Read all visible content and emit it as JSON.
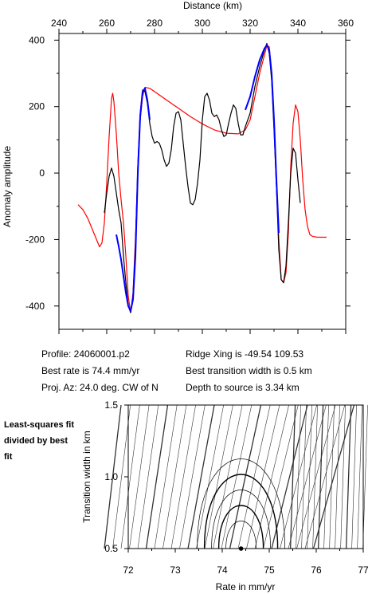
{
  "chart_data": [
    {
      "type": "line",
      "xlabel": "Distance (km)",
      "ylabel": "Anomaly amplitude",
      "xlim": [
        240,
        360
      ],
      "ylim": [
        -470,
        420
      ],
      "x_ticks": [
        240,
        260,
        280,
        300,
        320,
        340,
        360
      ],
      "y_ticks": [
        400,
        200,
        0,
        -200,
        -400
      ],
      "grid": false,
      "series": [
        {
          "color": "#ff0000",
          "points": [
            [
              248,
              -95
            ],
            [
              250,
              -110
            ],
            [
              252,
              -135
            ],
            [
              254,
              -170
            ],
            [
              256,
              -205
            ],
            [
              257,
              -222
            ],
            [
              258,
              -210
            ],
            [
              259,
              -150
            ],
            [
              260,
              -30
            ],
            [
              261,
              110
            ],
            [
              262,
              225
            ],
            [
              262.5,
              240
            ],
            [
              263,
              215
            ],
            [
              264,
              120
            ],
            [
              265,
              0
            ],
            [
              266,
              -80
            ],
            [
              267,
              -150
            ],
            [
              268,
              -250
            ],
            [
              269,
              -370
            ],
            [
              270,
              -420
            ],
            [
              271,
              -360
            ],
            [
              272,
              -200
            ],
            [
              273,
              0
            ],
            [
              274,
              160
            ],
            [
              275,
              230
            ],
            [
              276,
              258
            ],
            [
              278,
              255
            ],
            [
              280,
              245
            ],
            [
              285,
              220
            ],
            [
              290,
              195
            ],
            [
              295,
              170
            ],
            [
              300,
              148
            ],
            [
              305,
              130
            ],
            [
              310,
              120
            ],
            [
              315,
              118
            ],
            [
              318,
              130
            ],
            [
              320,
              160
            ],
            [
              322,
              230
            ],
            [
              324,
              300
            ],
            [
              326,
              355
            ],
            [
              327,
              385
            ],
            [
              328,
              380
            ],
            [
              329,
              300
            ],
            [
              330,
              150
            ],
            [
              331,
              -20
            ],
            [
              332,
              -200
            ],
            [
              333,
              -320
            ],
            [
              334,
              -330
            ],
            [
              335,
              -300
            ],
            [
              336,
              -180
            ],
            [
              337,
              20
            ],
            [
              338,
              150
            ],
            [
              339,
              205
            ],
            [
              340,
              185
            ],
            [
              341,
              100
            ],
            [
              342,
              -20
            ],
            [
              343,
              -110
            ],
            [
              344,
              -160
            ],
            [
              345,
              -185
            ],
            [
              346,
              -190
            ],
            [
              348,
              -193
            ],
            [
              352,
              -193
            ]
          ]
        },
        {
          "color": "#000000",
          "points": [
            [
              259,
              -120
            ],
            [
              260,
              -60
            ],
            [
              261,
              -10
            ],
            [
              262,
              15
            ],
            [
              263,
              -10
            ],
            [
              264,
              -60
            ],
            [
              265,
              -110
            ],
            [
              266,
              -150
            ],
            [
              267,
              -250
            ],
            [
              268,
              -330
            ],
            [
              269,
              -400
            ],
            [
              270,
              -420
            ],
            [
              271,
              -370
            ],
            [
              272,
              -220
            ],
            [
              273,
              20
            ],
            [
              274,
              180
            ],
            [
              275,
              250
            ],
            [
              276,
              245
            ],
            [
              277,
              210
            ],
            [
              278,
              150
            ],
            [
              279,
              110
            ],
            [
              280,
              90
            ],
            [
              281,
              95
            ],
            [
              282,
              90
            ],
            [
              283,
              70
            ],
            [
              284,
              40
            ],
            [
              285,
              20
            ],
            [
              286,
              30
            ],
            [
              287,
              70
            ],
            [
              288,
              140
            ],
            [
              289,
              180
            ],
            [
              290,
              185
            ],
            [
              291,
              160
            ],
            [
              292,
              90
            ],
            [
              293,
              20
            ],
            [
              294,
              -40
            ],
            [
              295,
              -90
            ],
            [
              296,
              -95
            ],
            [
              297,
              -80
            ],
            [
              298,
              -30
            ],
            [
              299,
              40
            ],
            [
              300,
              160
            ],
            [
              301,
              230
            ],
            [
              302,
              240
            ],
            [
              303,
              220
            ],
            [
              304,
              180
            ],
            [
              305,
              170
            ],
            [
              306,
              175
            ],
            [
              307,
              160
            ],
            [
              308,
              130
            ],
            [
              309,
              110
            ],
            [
              310,
              115
            ],
            [
              311,
              150
            ],
            [
              312,
              180
            ],
            [
              313,
              205
            ],
            [
              314,
              195
            ],
            [
              315,
              150
            ],
            [
              316,
              115
            ],
            [
              317,
              115
            ],
            [
              318,
              140
            ],
            [
              320,
              180
            ],
            [
              322,
              260
            ],
            [
              324,
              320
            ],
            [
              326,
              370
            ],
            [
              327,
              390
            ],
            [
              328,
              360
            ],
            [
              329,
              280
            ],
            [
              330,
              130
            ],
            [
              331,
              -40
            ],
            [
              332,
              -230
            ],
            [
              333,
              -320
            ],
            [
              334,
              -330
            ],
            [
              335,
              -280
            ],
            [
              336,
              -150
            ],
            [
              337,
              0
            ],
            [
              338,
              75
            ],
            [
              339,
              60
            ],
            [
              340,
              -20
            ],
            [
              341,
              -90
            ]
          ]
        },
        {
          "color": "#0000ff",
          "points": [
            [
              264,
              -185
            ],
            [
              265,
              -220
            ],
            [
              266,
              -260
            ],
            [
              267,
              -310
            ],
            [
              268,
              -360
            ],
            [
              269,
              -400
            ],
            [
              270,
              -415
            ],
            [
              271,
              -380
            ],
            [
              272,
              -250
            ],
            [
              273,
              0
            ],
            [
              274,
              170
            ],
            [
              275,
              245
            ],
            [
              276,
              255
            ],
            [
              277,
              220
            ],
            [
              278,
              160
            ]
          ]
        },
        {
          "color": "#0000ff",
          "points": [
            [
              318,
              190
            ],
            [
              320,
              230
            ],
            [
              322,
              290
            ],
            [
              324,
              340
            ],
            [
              326,
              375
            ],
            [
              327,
              385
            ],
            [
              328,
              370
            ],
            [
              329,
              300
            ],
            [
              330,
              160
            ],
            [
              331,
              -20
            ],
            [
              332,
              -180
            ]
          ]
        }
      ]
    },
    {
      "type": "contour",
      "xlabel": "Rate in mm/yr",
      "ylabel": "Transition width in km",
      "xlim": [
        72,
        77
      ],
      "ylim": [
        0.5,
        1.5
      ],
      "x_ticks": [
        72,
        73,
        74,
        75,
        76,
        77
      ],
      "y_ticks": [
        0.5,
        1.0,
        1.5
      ],
      "best_fit_point": [
        74.4,
        0.5
      ]
    }
  ],
  "info": {
    "profile": "Profile: 24060001.p2",
    "best_rate": "Best rate is 74.4 mm/yr",
    "proj_az": "Proj. Az: 24.0 deg. CW of N",
    "ridge_xing": "Ridge Xing is -49.54 109.53",
    "best_width": "Best transition width is 0.5 km",
    "depth": "Depth to source is   3.34 km",
    "side_note": "Least-squares fit divided by best fit"
  }
}
